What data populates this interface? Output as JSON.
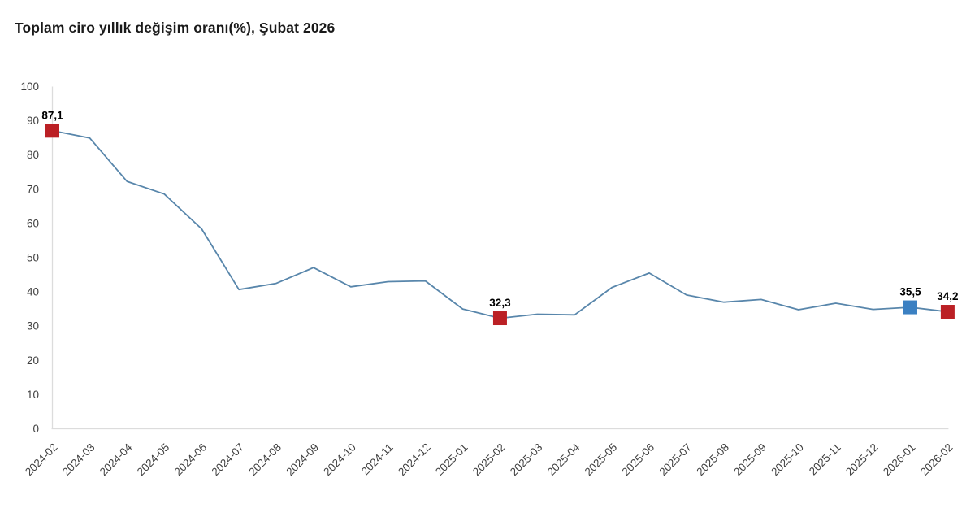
{
  "header": {
    "title": "Toplam ciro yıllık değişim oranı(%), Şubat 2026"
  },
  "chart_data": {
    "type": "line",
    "title": "Toplam ciro yıllık değişim oranı(%), Şubat 2026",
    "categories": [
      "2024-02",
      "2024-03",
      "2024-04",
      "2024-05",
      "2024-06",
      "2024-07",
      "2024-08",
      "2024-09",
      "2024-10",
      "2024-11",
      "2024-12",
      "2025-01",
      "2025-02",
      "2025-03",
      "2025-04",
      "2025-05",
      "2025-06",
      "2025-07",
      "2025-08",
      "2025-09",
      "2025-10",
      "2025-11",
      "2025-12",
      "2026-01",
      "2026-02"
    ],
    "values": [
      87.1,
      85.0,
      72.3,
      68.6,
      58.4,
      40.7,
      42.5,
      47.1,
      41.5,
      43.0,
      43.2,
      35.0,
      32.3,
      33.5,
      33.3,
      41.3,
      45.5,
      39.1,
      37.0,
      37.8,
      34.8,
      36.7,
      34.9,
      35.5,
      34.2
    ],
    "xlabel": "",
    "ylabel": "",
    "ylim": [
      0,
      100
    ],
    "ytick_step": 10,
    "grid": "none",
    "legend": "none",
    "colors": {
      "line": "#5886ab",
      "axis": "#dcdcdc",
      "tick_label": "#3f3f3f",
      "data_label": "#000000",
      "marker_red": "#bb2025",
      "marker_blue": "#3b80c2"
    },
    "annotations": [
      {
        "category": "2024-02",
        "index": 0,
        "value": 87.1,
        "label": "87,1",
        "marker": "red"
      },
      {
        "category": "2025-02",
        "index": 12,
        "value": 32.3,
        "label": "32,3",
        "marker": "red"
      },
      {
        "category": "2026-01",
        "index": 23,
        "value": 35.5,
        "label": "35,5",
        "marker": "blue"
      },
      {
        "category": "2026-02",
        "index": 24,
        "value": 34.2,
        "label": "34,2",
        "marker": "red"
      }
    ]
  }
}
